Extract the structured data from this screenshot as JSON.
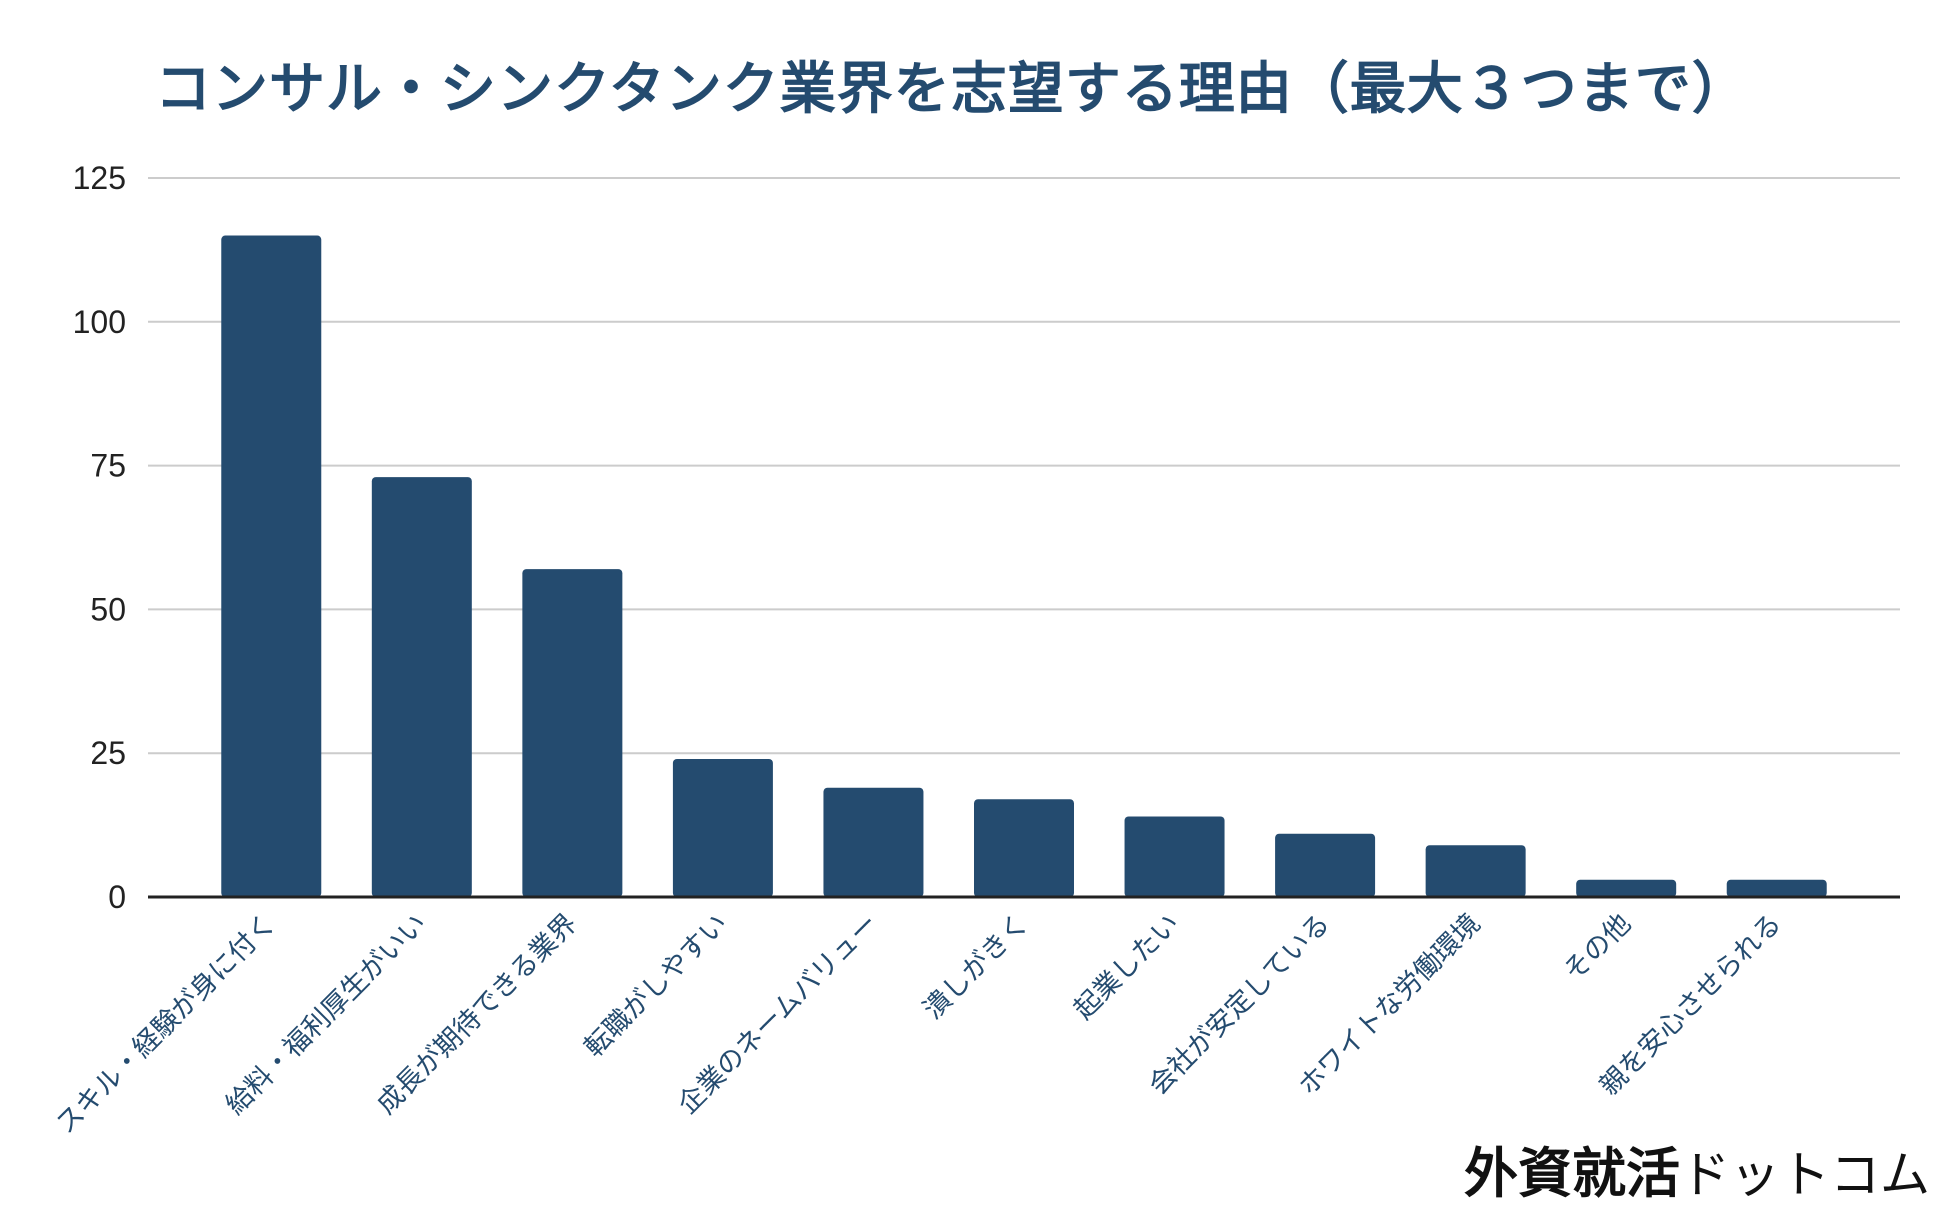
{
  "chart_data": {
    "type": "bar",
    "title": "コンサル・シンクタンク業界を志望する理由（最大３つまで）",
    "xlabel": "",
    "ylabel": "",
    "ylim": [
      0,
      125
    ],
    "yticks": [
      0,
      25,
      50,
      75,
      100,
      125
    ],
    "grid": true,
    "bar_color": "#244b6f",
    "categories": [
      "スキル・経験が身に付く",
      "給料・福利厚生がいい",
      "成長が期待できる業界",
      "転職がしやすい",
      "企業のネームバリュー",
      "潰しがきく",
      "起業したい",
      "会社が安定している",
      "ホワイトな労働環境",
      "その他",
      "親を安心させられる"
    ],
    "values": [
      115,
      73,
      57,
      24,
      19,
      17,
      14,
      11,
      9,
      3,
      3
    ]
  },
  "watermark": {
    "strong": "外資就活",
    "light": "ドットコム"
  }
}
